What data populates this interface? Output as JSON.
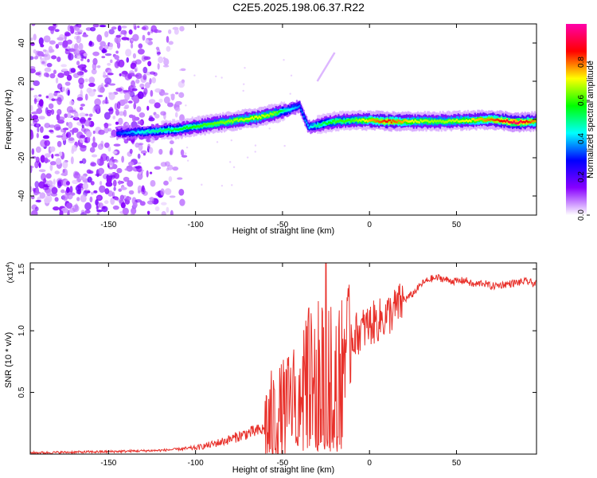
{
  "figure_title": "C2E5.2025.198.06.37.R22",
  "chart_data": [
    {
      "type": "heatmap",
      "title": "C2E5.2025.198.06.37.R22",
      "xlabel": "Height of straight line (km)",
      "ylabel": "Frequency (Hz)",
      "xlim": [
        -195,
        96
      ],
      "ylim": [
        -50,
        50
      ],
      "xticks": [
        -150,
        -100,
        -50,
        0,
        50
      ],
      "yticks": [
        -40,
        -20,
        0,
        20,
        40
      ],
      "xtick_labels": [
        "-150",
        "-100",
        "-50",
        "0",
        "50"
      ],
      "ytick_labels": [
        "-40",
        "-20",
        "0",
        "20",
        "40"
      ],
      "colorbar": {
        "label": "Normalized spectral amplitude",
        "range": [
          0,
          1
        ],
        "ticks": [
          0.0,
          0.2,
          0.4,
          0.6,
          0.8
        ],
        "tick_labels": [
          "0.0",
          "0.2",
          "0.4",
          "0.6",
          "0.8"
        ],
        "colors": [
          "#ffffff",
          "#8800ff",
          "#0000ff",
          "#00ffff",
          "#00ff00",
          "#ffff00",
          "#ff0000",
          "#ff00aa"
        ]
      },
      "ridge": {
        "x": [
          -145,
          -130,
          -110,
          -95,
          -80,
          -65,
          -55,
          -47,
          -40,
          -38,
          -35,
          -30,
          -25,
          -20,
          -10,
          0,
          10,
          25,
          40,
          55,
          70,
          85,
          96
        ],
        "y": [
          -7,
          -6.5,
          -5,
          -3,
          -1,
          1,
          3,
          5,
          7,
          2,
          -4,
          -3,
          -2,
          -1,
          -0.5,
          -0.5,
          -1,
          -1,
          -1,
          -0.5,
          0,
          -1.5,
          -1
        ],
        "amplitude": [
          0.3,
          0.45,
          0.55,
          0.6,
          0.65,
          0.7,
          0.65,
          0.45,
          0.35,
          0.35,
          0.4,
          0.5,
          0.55,
          0.6,
          0.6,
          0.75,
          0.85,
          0.7,
          0.65,
          0.7,
          0.8,
          0.95,
          0.75
        ]
      },
      "noise_region_x": [
        -195,
        -110
      ]
    },
    {
      "type": "line",
      "xlabel": "Height of straight line (km)",
      "ylabel": "SNR (10 * v/v)",
      "y_multiplier_label": "(x10",
      "y_multiplier_exp": "4",
      "y_multiplier_close": ")",
      "xlim": [
        -195,
        96
      ],
      "ylim": [
        0,
        1.55
      ],
      "xticks": [
        -150,
        -100,
        -50,
        0,
        50
      ],
      "yticks": [
        0.5,
        1.0,
        1.5
      ],
      "xtick_labels": [
        "-150",
        "-100",
        "-50",
        "0",
        "50"
      ],
      "ytick_labels": [
        "0.5",
        "1.0",
        "1.5"
      ],
      "line_color": "#e8302a",
      "x": [
        -195,
        -150,
        -120,
        -100,
        -90,
        -80,
        -70,
        -60,
        -55,
        -50,
        -45,
        -40,
        -35,
        -30,
        -25,
        -20,
        -15,
        -10,
        -5,
        0,
        5,
        10,
        15,
        20,
        25,
        30,
        35,
        40,
        45,
        50,
        55,
        60,
        65,
        70,
        75,
        80,
        85,
        90,
        96
      ],
      "y": [
        0.01,
        0.02,
        0.03,
        0.05,
        0.08,
        0.12,
        0.17,
        0.2,
        0.25,
        0.32,
        0.4,
        0.62,
        0.75,
        0.8,
        0.72,
        0.78,
        0.88,
        0.95,
        1.0,
        1.05,
        1.08,
        1.12,
        1.18,
        1.25,
        1.3,
        1.38,
        1.42,
        1.43,
        1.41,
        1.4,
        1.41,
        1.37,
        1.39,
        1.36,
        1.37,
        1.38,
        1.39,
        1.4,
        1.38
      ]
    }
  ]
}
